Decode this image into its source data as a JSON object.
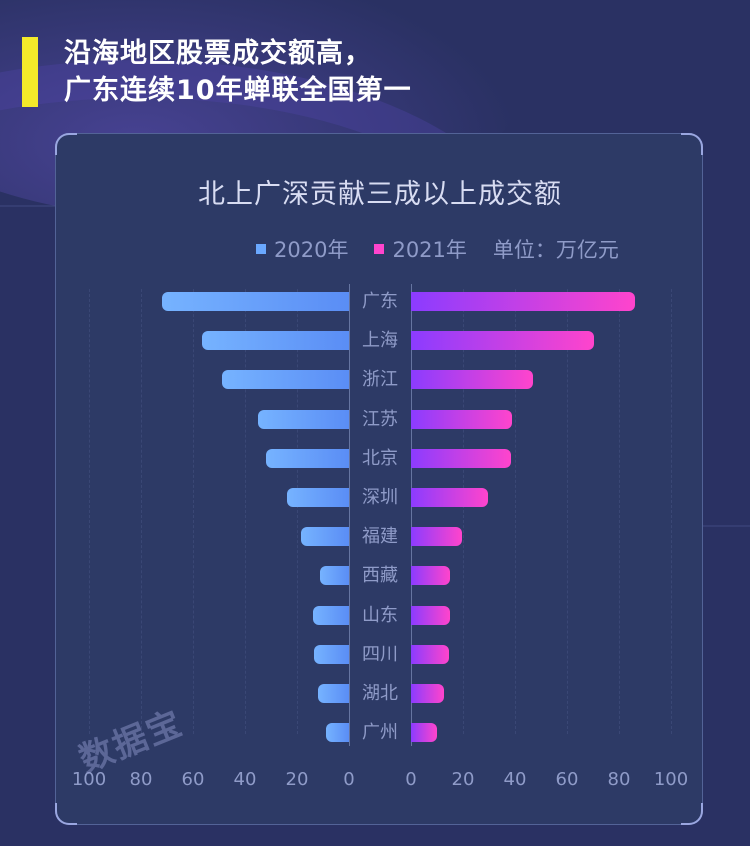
{
  "header": {
    "title_line1": "沿海地区股票成交额高，",
    "title_line2": "广东连续10年蝉联全国第一",
    "accent_color": "#f4ea2a"
  },
  "watermark": "数据宝",
  "chart_data": {
    "type": "bar",
    "orientation": "horizontal-butterfly",
    "title": "北上广深贡献三成以上成交额",
    "unit_label": "单位：万亿元",
    "legend": [
      {
        "name": "2020年",
        "color": "#6aa8ff"
      },
      {
        "name": "2021年",
        "color": "#ff44cc"
      }
    ],
    "categories": [
      "广东",
      "上海",
      "浙江",
      "江苏",
      "北京",
      "深圳",
      "福建",
      "西藏",
      "山东",
      "四川",
      "湖北",
      "广州"
    ],
    "series": [
      {
        "name": "2020年",
        "side": "left",
        "values": [
          72,
          56.5,
          49,
          35,
          32,
          24,
          18.5,
          11,
          14,
          13.5,
          12,
          9
        ]
      },
      {
        "name": "2021年",
        "side": "right",
        "values": [
          86,
          70.5,
          47,
          39,
          38.5,
          29.5,
          19.5,
          15,
          15,
          14.5,
          12.5,
          10
        ]
      }
    ],
    "left_axis_ticks": [
      "100",
      "80",
      "60",
      "40",
      "20",
      "0"
    ],
    "right_axis_ticks": [
      "0",
      "20",
      "40",
      "60",
      "80",
      "100"
    ],
    "xlim": [
      0,
      100
    ],
    "grid": true,
    "legend_position": "top-right"
  }
}
